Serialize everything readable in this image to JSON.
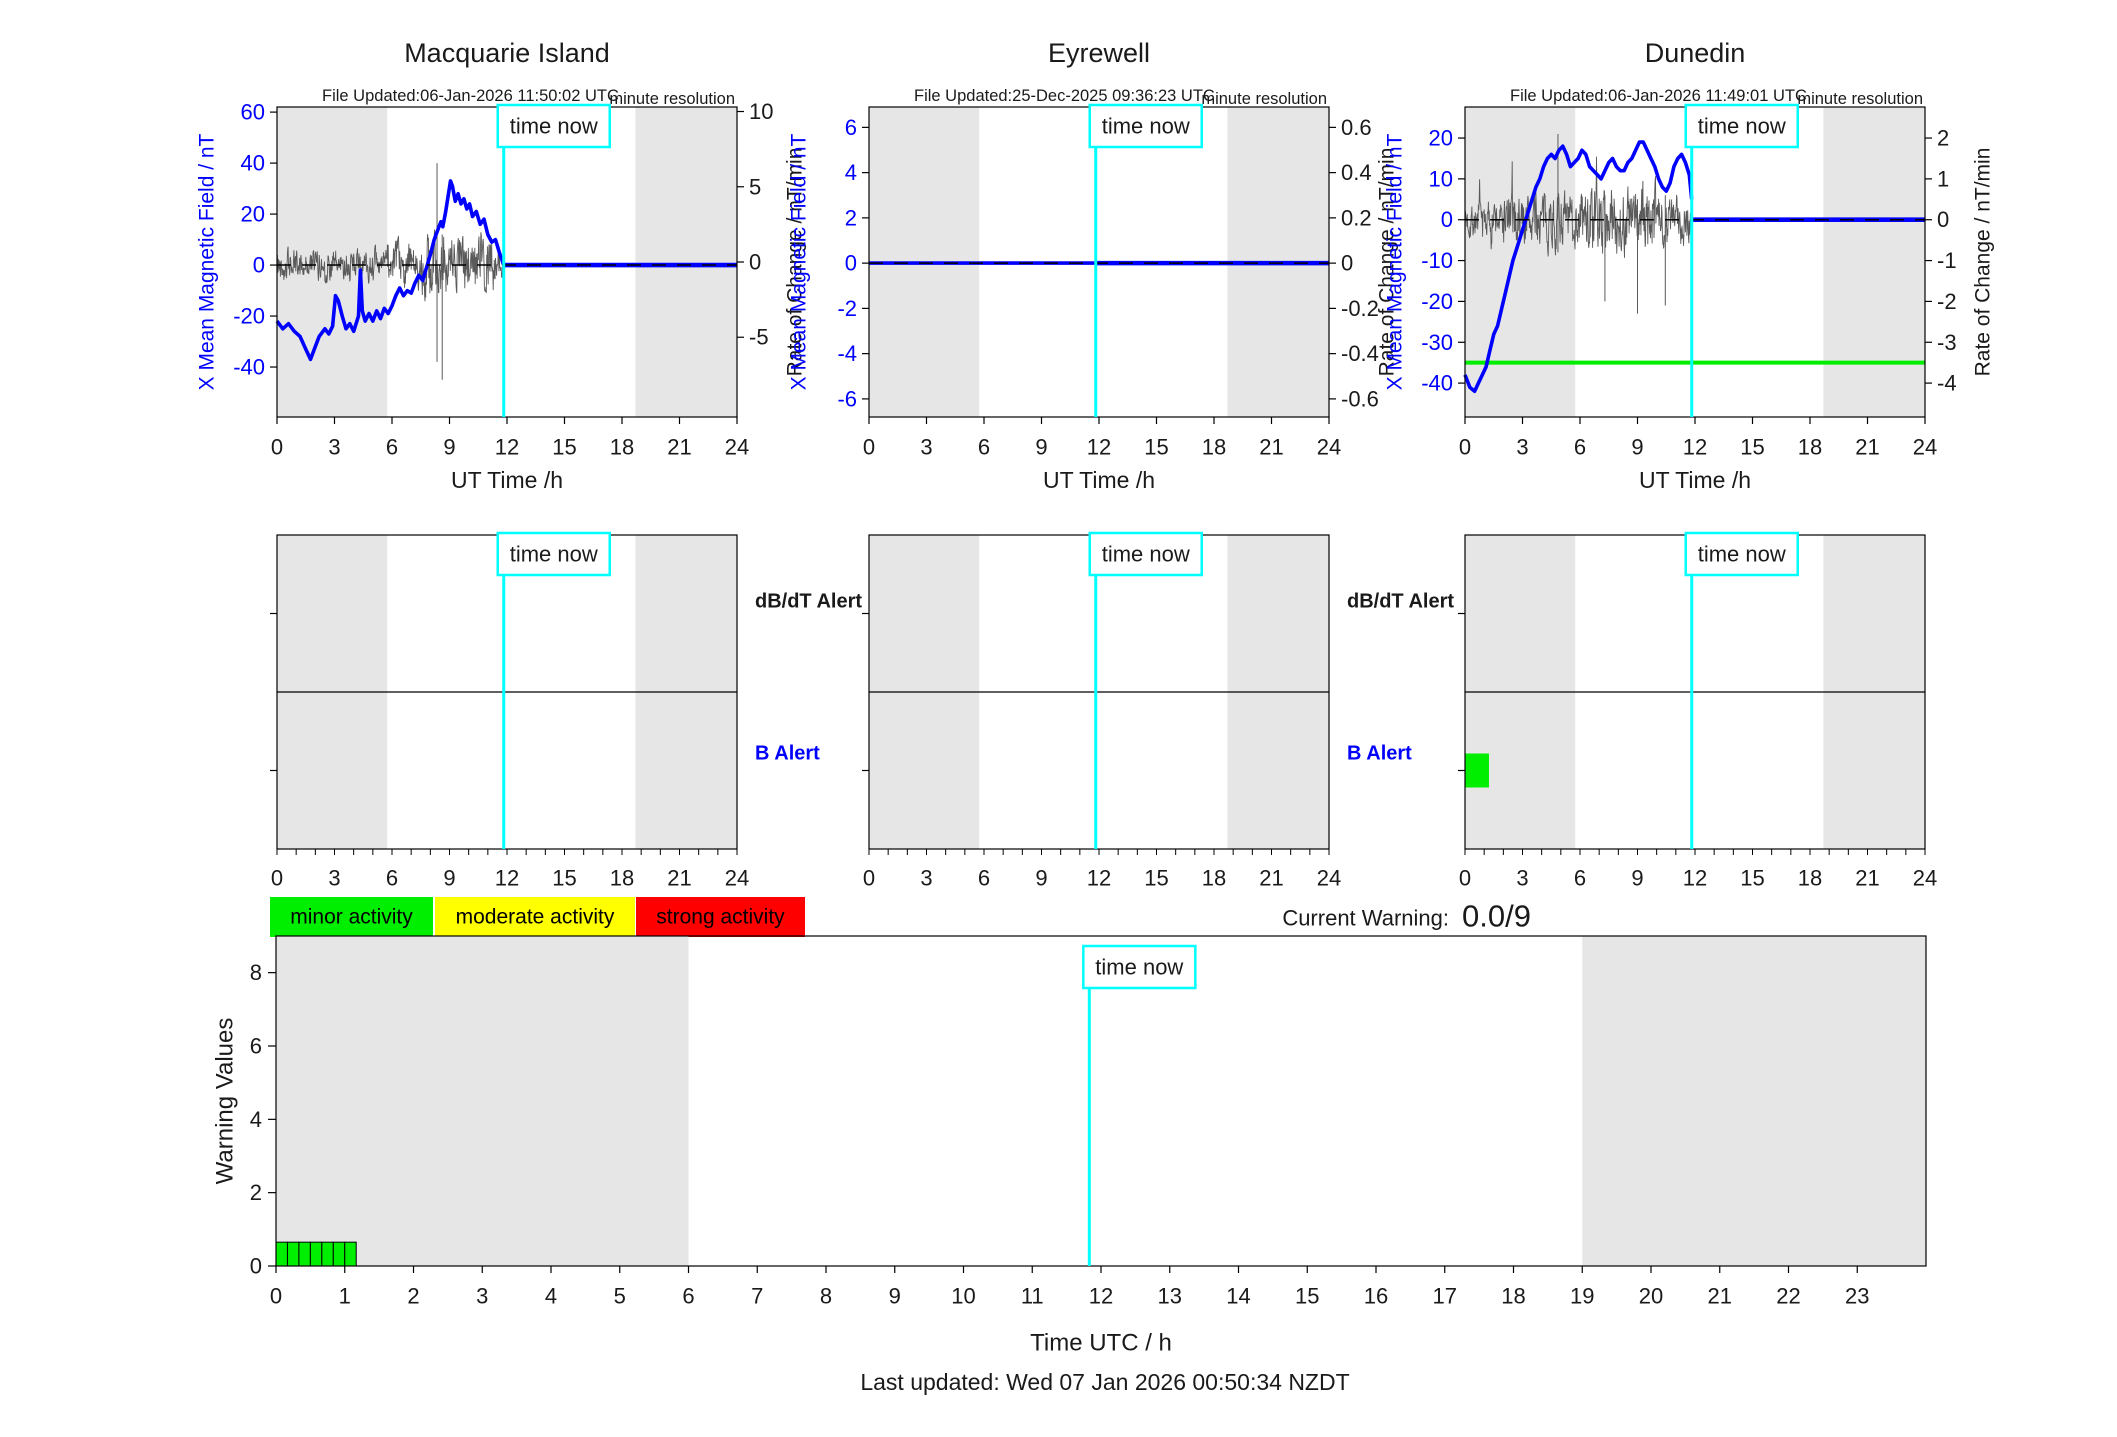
{
  "footer": {
    "last_updated": "Last updated: Wed 07 Jan 2026 00:50:34 NZDT"
  },
  "current_warning": {
    "label": "Current Warning:",
    "value": "0.0/9"
  },
  "legend": [
    {
      "label": "minor activity",
      "color": "#00ee00"
    },
    {
      "label": "moderate activity",
      "color": "#ffff00"
    },
    {
      "label": "strong activity",
      "color": "#ff0000"
    }
  ],
  "colors": {
    "line_blue": "#0000ff",
    "axis_black": "#1a1a1a",
    "noise_gray": "#5a5a5a",
    "night_band": "#e6e6e6",
    "time_now_cyan": "#00ffff",
    "green": "#00ee00"
  },
  "chart_data": [
    {
      "id": "macquarie",
      "type": "line",
      "title": "Macquarie Island",
      "file_updated": "File Updated:06-Jan-2026 11:50:02 UTC",
      "resolution_note": "minute resolution",
      "time_now_label": "time now",
      "time_now_h": 11.83,
      "x": {
        "label": "UT Time /h",
        "ticks": [
          0,
          3,
          6,
          9,
          12,
          15,
          18,
          21,
          24
        ],
        "lim": [
          0,
          24
        ]
      },
      "y_left": {
        "label": "X Mean Magnetic Field / nT",
        "ticks": [
          60,
          40,
          20,
          0,
          -20,
          -40
        ],
        "lim": [
          -59.6,
          62
        ]
      },
      "y_right": {
        "label": "Rate of Change / nT/min",
        "ticks": [
          10,
          5,
          0,
          -5
        ],
        "lim": [
          -10.3,
          10.3
        ]
      },
      "night_bands": [
        [
          0,
          5.75
        ],
        [
          18.7,
          24
        ]
      ],
      "series": {
        "mean_field_nT": [
          [
            0,
            -22
          ],
          [
            0.3,
            -25
          ],
          [
            0.6,
            -23
          ],
          [
            0.9,
            -26
          ],
          [
            1.2,
            -28
          ],
          [
            1.5,
            -33
          ],
          [
            1.75,
            -37
          ],
          [
            2.0,
            -32
          ],
          [
            2.2,
            -28
          ],
          [
            2.5,
            -25
          ],
          [
            2.7,
            -27
          ],
          [
            2.9,
            -24
          ],
          [
            3.05,
            -12
          ],
          [
            3.2,
            -14
          ],
          [
            3.4,
            -20
          ],
          [
            3.6,
            -25
          ],
          [
            3.8,
            -23
          ],
          [
            4.0,
            -26
          ],
          [
            4.25,
            -20
          ],
          [
            4.35,
            -2
          ],
          [
            4.45,
            -18
          ],
          [
            4.6,
            -22
          ],
          [
            4.8,
            -19
          ],
          [
            5.0,
            -22
          ],
          [
            5.2,
            -18
          ],
          [
            5.4,
            -21
          ],
          [
            5.6,
            -17
          ],
          [
            5.8,
            -19
          ],
          [
            6.0,
            -16
          ],
          [
            6.2,
            -12
          ],
          [
            6.4,
            -9
          ],
          [
            6.6,
            -12
          ],
          [
            6.8,
            -10
          ],
          [
            7.0,
            -11
          ],
          [
            7.2,
            -7
          ],
          [
            7.4,
            -4
          ],
          [
            7.6,
            -6
          ],
          [
            7.8,
            -1
          ],
          [
            8.0,
            4
          ],
          [
            8.2,
            10
          ],
          [
            8.4,
            14
          ],
          [
            8.55,
            17
          ],
          [
            8.65,
            15
          ],
          [
            8.8,
            21
          ],
          [
            8.95,
            28
          ],
          [
            9.05,
            33
          ],
          [
            9.15,
            31
          ],
          [
            9.3,
            25
          ],
          [
            9.45,
            28
          ],
          [
            9.6,
            24
          ],
          [
            9.75,
            26
          ],
          [
            9.9,
            22
          ],
          [
            10.05,
            24
          ],
          [
            10.2,
            19
          ],
          [
            10.4,
            21
          ],
          [
            10.6,
            16
          ],
          [
            10.8,
            18
          ],
          [
            11.0,
            12
          ],
          [
            11.2,
            9
          ],
          [
            11.4,
            10
          ],
          [
            11.6,
            5
          ],
          [
            11.83,
            0
          ]
        ],
        "flat_value_after_now": 0,
        "zero_dash": true,
        "baseline_green": null,
        "noise": {
          "seed": 42,
          "segments": [
            [
              0,
              6,
              5
            ],
            [
              6,
              7.5,
              7
            ],
            [
              7.5,
              11.3,
              10
            ],
            [
              11.3,
              11.83,
              6
            ]
          ],
          "spikes": [
            [
              8.35,
              -38,
              40
            ],
            [
              8.62,
              -45,
              12
            ]
          ]
        }
      }
    },
    {
      "id": "eyrewell",
      "type": "line",
      "title": "Eyrewell",
      "file_updated": "File Updated:25-Dec-2025 09:36:23 UTC",
      "resolution_note": "minute resolution",
      "time_now_label": "time now",
      "time_now_h": 11.83,
      "x": {
        "label": "UT Time /h",
        "ticks": [
          0,
          3,
          6,
          9,
          12,
          15,
          18,
          21,
          24
        ],
        "lim": [
          0,
          24
        ]
      },
      "y_left": {
        "label": "X Mean Magnetic Field / nT",
        "ticks": [
          6,
          4,
          2,
          0,
          -2,
          -4,
          -6
        ],
        "lim": [
          -6.8,
          6.9
        ]
      },
      "y_right": {
        "label": "Rate of Change / nT/min",
        "ticks": [
          0.6,
          0.4,
          0.2,
          0,
          -0.2,
          -0.4,
          -0.6
        ],
        "lim": [
          -0.68,
          0.69
        ]
      },
      "night_bands": [
        [
          0,
          5.75
        ],
        [
          18.7,
          24
        ]
      ],
      "series": {
        "mean_field_nT": [
          [
            0,
            0
          ],
          [
            24,
            0
          ]
        ],
        "flat_value_after_now": 0,
        "zero_dash": true,
        "baseline_green": null,
        "noise": null
      }
    },
    {
      "id": "dunedin",
      "type": "line",
      "title": "Dunedin",
      "file_updated": "File Updated:06-Jan-2026 11:49:01 UTC",
      "resolution_note": "minute resolution",
      "time_now_label": "time now",
      "time_now_h": 11.83,
      "x": {
        "label": "UT Time /h",
        "ticks": [
          0,
          3,
          6,
          9,
          12,
          15,
          18,
          21,
          24
        ],
        "lim": [
          0,
          24
        ]
      },
      "y_left": {
        "label": "X Mean Magnetic Field / nT",
        "ticks": [
          20,
          10,
          0,
          -10,
          -20,
          -30,
          -40
        ],
        "lim": [
          -48.3,
          27.6
        ]
      },
      "y_right": {
        "label": "Rate of Change / nT/min",
        "ticks": [
          2,
          1,
          0,
          -1,
          -2,
          -3,
          -4
        ],
        "lim": [
          -4.83,
          2.76
        ]
      },
      "night_bands": [
        [
          0,
          5.75
        ],
        [
          18.7,
          24
        ]
      ],
      "series": {
        "mean_field_nT": [
          [
            0,
            -38
          ],
          [
            0.25,
            -41
          ],
          [
            0.5,
            -42
          ],
          [
            0.7,
            -40
          ],
          [
            0.9,
            -38
          ],
          [
            1.1,
            -36
          ],
          [
            1.3,
            -32
          ],
          [
            1.5,
            -28
          ],
          [
            1.7,
            -26
          ],
          [
            1.9,
            -22
          ],
          [
            2.1,
            -18
          ],
          [
            2.3,
            -14
          ],
          [
            2.5,
            -10
          ],
          [
            2.7,
            -7
          ],
          [
            2.9,
            -4
          ],
          [
            3.1,
            -1
          ],
          [
            3.3,
            2
          ],
          [
            3.5,
            5
          ],
          [
            3.7,
            8
          ],
          [
            3.9,
            10
          ],
          [
            4.1,
            13
          ],
          [
            4.3,
            15
          ],
          [
            4.5,
            16
          ],
          [
            4.7,
            15
          ],
          [
            4.9,
            17
          ],
          [
            5.1,
            18
          ],
          [
            5.3,
            16
          ],
          [
            5.5,
            13
          ],
          [
            5.7,
            14
          ],
          [
            5.9,
            15
          ],
          [
            6.1,
            17
          ],
          [
            6.3,
            16
          ],
          [
            6.5,
            13
          ],
          [
            6.7,
            12
          ],
          [
            6.9,
            11
          ],
          [
            7.1,
            10
          ],
          [
            7.3,
            12
          ],
          [
            7.5,
            14
          ],
          [
            7.7,
            15
          ],
          [
            7.9,
            13
          ],
          [
            8.1,
            12
          ],
          [
            8.3,
            12
          ],
          [
            8.5,
            14
          ],
          [
            8.7,
            15
          ],
          [
            8.9,
            17
          ],
          [
            9.1,
            19
          ],
          [
            9.3,
            19
          ],
          [
            9.5,
            17
          ],
          [
            9.7,
            15
          ],
          [
            9.9,
            13
          ],
          [
            10.1,
            10
          ],
          [
            10.3,
            8
          ],
          [
            10.5,
            7
          ],
          [
            10.7,
            9
          ],
          [
            10.9,
            13
          ],
          [
            11.1,
            15
          ],
          [
            11.3,
            16
          ],
          [
            11.5,
            14
          ],
          [
            11.7,
            11
          ],
          [
            11.83,
            5
          ]
        ],
        "flat_value_after_now": 0,
        "zero_dash": true,
        "baseline_green": -35,
        "noise": {
          "seed": 7,
          "segments": [
            [
              0,
              2,
              4
            ],
            [
              2,
              6,
              5.5
            ],
            [
              6,
              10,
              7
            ],
            [
              10,
              11.83,
              5
            ]
          ],
          "spikes": [
            [
              4.85,
              -8,
              21
            ],
            [
              7.3,
              -20,
              6
            ],
            [
              9.0,
              -23,
              5
            ],
            [
              10.45,
              -21,
              6
            ]
          ]
        }
      }
    },
    {
      "id": "alert-macquarie",
      "type": "alert",
      "rows": [
        "dB/dT Alert",
        "B Alert"
      ],
      "show_row_labels": true,
      "time_now_label": "time now",
      "time_now_h": 11.83,
      "x": {
        "ticks": [
          0,
          3,
          6,
          9,
          12,
          15,
          18,
          21,
          24
        ],
        "lim": [
          0,
          24
        ]
      },
      "night_bands": [
        [
          0,
          5.75
        ],
        [
          18.7,
          24
        ]
      ],
      "bars": []
    },
    {
      "id": "alert-eyrewell",
      "type": "alert",
      "rows": [
        "dB/dT Alert",
        "B Alert"
      ],
      "show_row_labels": true,
      "time_now_label": "time now",
      "time_now_h": 11.83,
      "x": {
        "ticks": [
          0,
          3,
          6,
          9,
          12,
          15,
          18,
          21,
          24
        ],
        "lim": [
          0,
          24
        ]
      },
      "night_bands": [
        [
          0,
          5.75
        ],
        [
          18.7,
          24
        ]
      ],
      "bars": []
    },
    {
      "id": "alert-dunedin",
      "type": "alert",
      "rows": [
        "dB/dT Alert",
        "B Alert"
      ],
      "show_row_labels": false,
      "time_now_label": "time now",
      "time_now_h": 11.83,
      "x": {
        "ticks": [
          0,
          3,
          6,
          9,
          12,
          15,
          18,
          21,
          24
        ],
        "lim": [
          0,
          24
        ]
      },
      "night_bands": [
        [
          0,
          5.75
        ],
        [
          18.7,
          24
        ]
      ],
      "bars": [
        {
          "row": "B Alert",
          "start_h": 0,
          "end_h": 1.25,
          "color": "#00ee00"
        }
      ]
    },
    {
      "id": "warning-values",
      "type": "bar",
      "ylabel": "Warning Values",
      "xlabel": "Time UTC / h",
      "time_now_label": "time now",
      "time_now_h": 11.83,
      "ylim": [
        0,
        9
      ],
      "yticks": [
        0,
        2,
        4,
        6,
        8
      ],
      "xticks": [
        0,
        1,
        2,
        3,
        4,
        5,
        6,
        7,
        8,
        9,
        10,
        11,
        12,
        13,
        14,
        15,
        16,
        17,
        18,
        19,
        20,
        21,
        22,
        23
      ],
      "xlim": [
        0,
        24
      ],
      "night_bands": [
        [
          0,
          6
        ],
        [
          19,
          24
        ]
      ],
      "bars": {
        "start_h": 0,
        "cell_hours": 0.16667,
        "heights": [
          0.65,
          0.65,
          0.65,
          0.65,
          0.65,
          0.65,
          0.65
        ],
        "color": "#00ee00"
      }
    }
  ]
}
